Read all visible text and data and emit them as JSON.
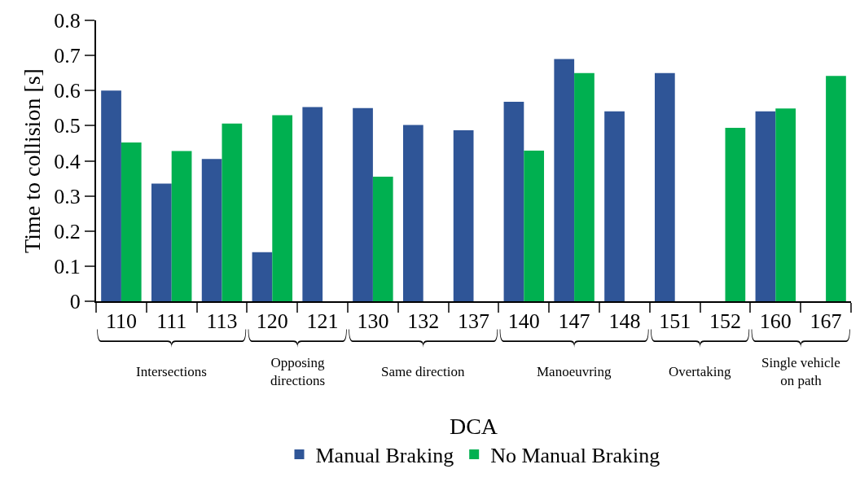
{
  "chart_data": {
    "type": "bar",
    "xlabel": "DCA",
    "ylabel": "Time to collision [s]",
    "categories": [
      "110",
      "111",
      "113",
      "120",
      "121",
      "130",
      "132",
      "137",
      "140",
      "147",
      "148",
      "151",
      "152",
      "160",
      "167"
    ],
    "series": [
      {
        "name": "Manual Braking",
        "color": "#2f5597",
        "values": [
          0.6,
          0.335,
          0.405,
          0.14,
          0.553,
          0.55,
          0.502,
          0.487,
          0.568,
          0.69,
          0.541,
          0.65,
          null,
          0.541,
          null
        ]
      },
      {
        "name": "No Manual Braking",
        "color": "#00b050",
        "values": [
          0.452,
          0.428,
          0.506,
          0.53,
          null,
          0.355,
          null,
          null,
          0.429,
          0.65,
          null,
          null,
          0.494,
          0.549,
          0.642
        ]
      }
    ],
    "ylim": [
      0,
      0.8
    ],
    "yticks": [
      0,
      0.1,
      0.2,
      0.3,
      0.4,
      0.5,
      0.6,
      0.7,
      0.8
    ],
    "annotations": [
      "Intersections",
      "Opposing\ndirections",
      "Same direction",
      "Manoeuvring",
      "Overtaking",
      "Single vehicle\non path"
    ],
    "legend": "bottom"
  }
}
